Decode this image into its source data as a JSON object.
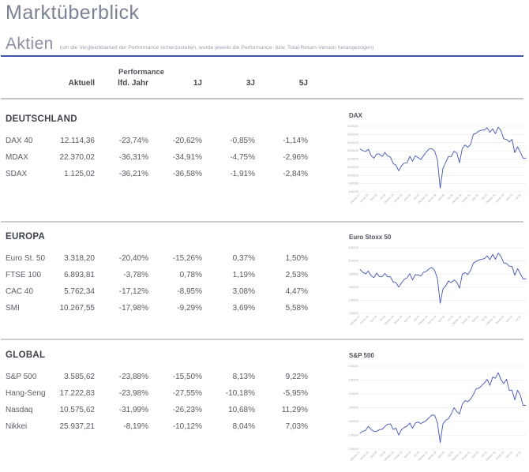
{
  "page": {
    "title": "Marktüberblick",
    "section_title": "Aktien",
    "section_note": "(um die Vergleichbarkeit der Performance sicherzustellen, wurde jeweils die Performance- bzw. Total-Return-Version herangezogen)",
    "accent_color": "#4254a8"
  },
  "colors": {
    "chart_line": "#4353b2",
    "gridline": "#e7e7e7",
    "tick_text": "#a3a3a3",
    "separator": "#cdcdcf"
  },
  "table": {
    "group_header": "Performance",
    "columns": [
      "Aktuell",
      "lfd. Jahr",
      "1J",
      "3J",
      "5J"
    ],
    "sections": [
      {
        "name": "DEUTSCHLAND",
        "rows": [
          {
            "label": "DAX 40",
            "cells": [
              "12.114,36",
              "-23,74%",
              "-20,62%",
              "-0,85%",
              "-1,14%"
            ]
          },
          {
            "label": "MDAX",
            "cells": [
              "22.370,02",
              "-36,31%",
              "-34,91%",
              "-4,75%",
              "-2,96%"
            ]
          },
          {
            "label": "SDAX",
            "cells": [
              "1.125,02",
              "-36,21%",
              "-36,58%",
              "-1,91%",
              "-2,84%"
            ]
          }
        ]
      },
      {
        "name": "EUROPA",
        "rows": [
          {
            "label": "Euro St. 50",
            "cells": [
              "3.318,20",
              "-20,40%",
              "-15,26%",
              "0,37%",
              "1,50%"
            ]
          },
          {
            "label": "FTSE 100",
            "cells": [
              "6.893,81",
              "-3,78%",
              "0,78%",
              "1,19%",
              "2,53%"
            ]
          },
          {
            "label": "CAC 40",
            "cells": [
              "5.762,34",
              "-17,12%",
              "-8,95%",
              "3,08%",
              "4,47%"
            ]
          },
          {
            "label": "SMI",
            "cells": [
              "10.267,55",
              "-17,98%",
              "-9,29%",
              "3,69%",
              "5,58%"
            ]
          }
        ]
      },
      {
        "name": "GLOBAL",
        "rows": [
          {
            "label": "S&P 500",
            "cells": [
              "3.585,62",
              "-23,88%",
              "-15,50%",
              "8,13%",
              "9,22%"
            ]
          },
          {
            "label": "Hang-Seng",
            "cells": [
              "17.222,83",
              "-23,98%",
              "-27,55%",
              "-10,18%",
              "-5,95%"
            ]
          },
          {
            "label": "Nasdaq",
            "cells": [
              "10.575,62",
              "-31,99%",
              "-26,23%",
              "10,68%",
              "11,29%"
            ]
          },
          {
            "label": "Nikkei",
            "cells": [
              "25.937,21",
              "-8,19%",
              "-10,12%",
              "8,04%",
              "7,03%"
            ]
          }
        ]
      }
    ]
  },
  "chart_data": [
    {
      "type": "line",
      "title": "DAX",
      "xlabel": "",
      "ylabel": "",
      "legend": false,
      "grid": true,
      "ylim": [
        8000,
        16000
      ],
      "y_ticks": [
        16000,
        15000,
        14000,
        13000,
        12000,
        11000,
        10000,
        9000,
        8000
      ],
      "y_tick_labels": [
        "16.000,00",
        "15.000,00",
        "14.000,00",
        "13.000,00",
        "12.000,00",
        "11.000,00",
        "10.000,00",
        "9.000,00",
        "8.000,00"
      ],
      "x_tick_labels": [
        "Oktober 17",
        "Januar 18",
        "April 18",
        "Juli 18",
        "Oktober 18",
        "Januar 19",
        "April 19",
        "Juli 19",
        "Oktober 19",
        "Januar 20",
        "April 20",
        "Juli 20",
        "Oktober 20",
        "Januar 21",
        "April 21",
        "Juli 21",
        "Oktober 21",
        "Januar 22",
        "April 22",
        "Juli 22"
      ],
      "x_range": "Oktober 2017 – Oktober 2022, monatliche Schätzwerte",
      "values": [
        13230,
        13024,
        12918,
        13190,
        12436,
        12097,
        12612,
        12604,
        12306,
        12806,
        12364,
        12247,
        11448,
        11257,
        10559,
        11173,
        11516,
        11526,
        12344,
        11727,
        12399,
        12189,
        11939,
        12428,
        12867,
        13236,
        13249,
        12982,
        11890,
        8442,
        10862,
        11587,
        12311,
        12313,
        12945,
        12761,
        11556,
        13291,
        13719,
        13433,
        13786,
        15008,
        15136,
        15421,
        15531,
        15544,
        15835,
        15261,
        15689,
        15100,
        15885,
        15471,
        14461,
        14415,
        14098,
        14388,
        12784,
        13484,
        12835,
        12114,
        12114
      ]
    },
    {
      "type": "line",
      "title": "Euro Stoxx 50",
      "xlabel": "",
      "ylabel": "",
      "legend": false,
      "grid": true,
      "ylim": [
        2000,
        4500
      ],
      "y_ticks": [
        4500,
        4000,
        3500,
        3000,
        2500,
        2000
      ],
      "y_tick_labels": [
        "4.500,00",
        "4.000,00",
        "3.500,00",
        "3.000,00",
        "2.500,00",
        "2.000,00"
      ],
      "x_tick_labels": [
        "Oktober 17",
        "Januar 18",
        "April 18",
        "Juli 18",
        "Oktober 18",
        "Januar 19",
        "April 19",
        "Juli 19",
        "Oktober 19",
        "Januar 20",
        "April 20",
        "Juli 20",
        "Oktober 20",
        "Januar 21",
        "April 21",
        "Juli 21",
        "Oktober 21",
        "Januar 22",
        "April 22",
        "Juli 22"
      ],
      "x_range": "Oktober 2017 – Oktober 2022, monatliche Schätzwerte",
      "values": [
        3674,
        3570,
        3504,
        3609,
        3439,
        3362,
        3537,
        3407,
        3396,
        3525,
        3393,
        3399,
        3198,
        3173,
        3001,
        3159,
        3298,
        3352,
        3515,
        3280,
        3474,
        3467,
        3427,
        3569,
        3604,
        3704,
        3745,
        3641,
        3329,
        2386,
        2927,
        3050,
        3234,
        3174,
        3273,
        3193,
        2958,
        3493,
        3553,
        3481,
        3636,
        3919,
        3974,
        4039,
        4064,
        4089,
        4196,
        4048,
        4251,
        4063,
        4298,
        4175,
        3924,
        3903,
        3803,
        3789,
        3455,
        3708,
        3517,
        3318,
        3318
      ]
    },
    {
      "type": "line",
      "title": "S&P 500",
      "xlabel": "",
      "ylabel": "",
      "legend": false,
      "grid": true,
      "ylim": [
        2000,
        5000
      ],
      "y_ticks": [
        5000,
        4500,
        4000,
        3500,
        3000,
        2500,
        2000
      ],
      "y_tick_labels": [
        "5.000,00",
        "4.500,00",
        "4.000,00",
        "3.500,00",
        "3.000,00",
        "2.500,00",
        "2.000,00"
      ],
      "x_tick_labels": [
        "Oktober 17",
        "Januar 18",
        "April 18",
        "Juli 18",
        "Oktober 18",
        "Januar 19",
        "April 19",
        "Juli 19",
        "Oktober 19",
        "Januar 20",
        "April 20",
        "Juli 20",
        "Oktober 20",
        "Januar 21",
        "April 21",
        "Juli 21",
        "Oktober 21",
        "Januar 22",
        "April 22",
        "Juli 22"
      ],
      "x_range": "Oktober 2017 – Oktober 2022, monatliche Schätzwerte",
      "values": [
        2575,
        2648,
        2674,
        2824,
        2714,
        2641,
        2648,
        2705,
        2718,
        2816,
        2902,
        2914,
        2712,
        2760,
        2507,
        2704,
        2784,
        2834,
        2946,
        2752,
        2942,
        2980,
        2926,
        2977,
        3038,
        3141,
        3231,
        3226,
        2954,
        2237,
        2912,
        3044,
        3100,
        3271,
        3500,
        3363,
        3270,
        3622,
        3756,
        3714,
        3811,
        3973,
        4181,
        4204,
        4298,
        4395,
        4523,
        4308,
        4605,
        4567,
        4766,
        4516,
        4374,
        4530,
        4132,
        4132,
        3785,
        4130,
        3955,
        3586,
        3586
      ]
    }
  ]
}
